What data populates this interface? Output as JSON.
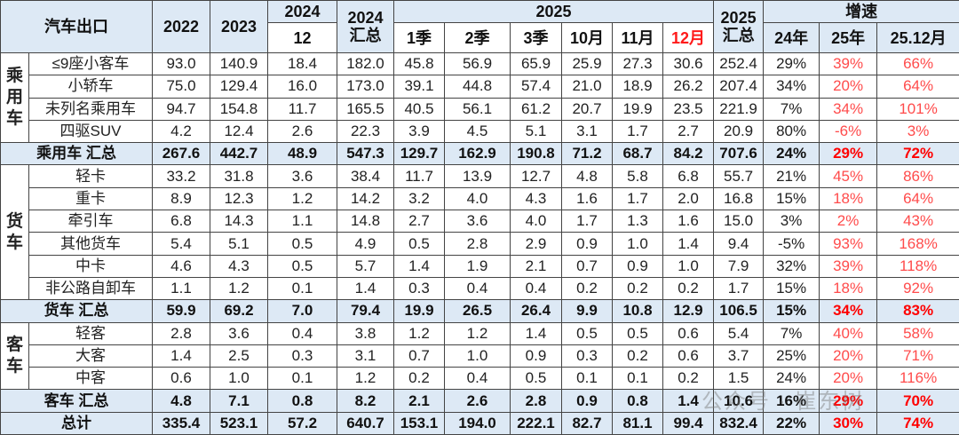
{
  "header": {
    "corner": "汽车出口",
    "y2022": "2022",
    "y2023": "2023",
    "y2024": "2024",
    "y2024_month": "12",
    "y2024_total_year": "2024",
    "y2024_total_label": "汇总",
    "y2025": "2025",
    "months2025": [
      "1季",
      "2季",
      "3季",
      "10月",
      "11月",
      "12月"
    ],
    "y2025_total_year": "2025",
    "y2025_total_label": "汇总",
    "growth": "增速",
    "growth_cols": [
      "24年",
      "25年",
      "25.12月"
    ]
  },
  "colors": {
    "header_bg": "#dde9f5",
    "highlight_red": "#ff0000",
    "growth_red": "#ff4b4b"
  },
  "groups": [
    {
      "name": "乘用车",
      "rows": [
        {
          "label": "≤9座小客车",
          "values": [
            "93.0",
            "140.9",
            "18.4",
            "182.0",
            "45.8",
            "56.9",
            "65.9",
            "25.9",
            "27.3",
            "30.6",
            "252.4"
          ],
          "growth": [
            "29%",
            "39%",
            "66%"
          ]
        },
        {
          "label": "小轿车",
          "values": [
            "75.0",
            "129.4",
            "16.0",
            "173.0",
            "39.1",
            "44.8",
            "57.4",
            "21.0",
            "18.9",
            "26.2",
            "207.4"
          ],
          "growth": [
            "34%",
            "20%",
            "64%"
          ]
        },
        {
          "label": "未列名乘用车",
          "values": [
            "94.7",
            "154.8",
            "11.7",
            "165.5",
            "40.5",
            "56.1",
            "61.2",
            "20.7",
            "19.9",
            "23.5",
            "221.9"
          ],
          "growth": [
            "7%",
            "34%",
            "101%"
          ]
        },
        {
          "label": "四驱SUV",
          "values": [
            "4.2",
            "12.4",
            "2.6",
            "22.3",
            "3.9",
            "4.5",
            "5.1",
            "3.1",
            "1.7",
            "2.7",
            "20.9"
          ],
          "growth": [
            "80%",
            "-6%",
            "3%"
          ]
        }
      ],
      "total": {
        "label": "乘用车 汇总",
        "values": [
          "267.6",
          "442.7",
          "48.9",
          "547.3",
          "129.7",
          "162.9",
          "190.8",
          "71.2",
          "68.7",
          "84.2",
          "707.6"
        ],
        "growth": [
          "24%",
          "29%",
          "72%"
        ]
      }
    },
    {
      "name": "货车",
      "rows": [
        {
          "label": "轻卡",
          "values": [
            "33.2",
            "31.8",
            "3.6",
            "38.4",
            "11.7",
            "13.9",
            "12.7",
            "4.8",
            "5.8",
            "6.8",
            "55.7"
          ],
          "growth": [
            "21%",
            "45%",
            "86%"
          ]
        },
        {
          "label": "重卡",
          "values": [
            "8.9",
            "12.3",
            "1.2",
            "14.2",
            "3.2",
            "4.0",
            "4.3",
            "1.6",
            "1.7",
            "2.0",
            "16.8"
          ],
          "growth": [
            "15%",
            "18%",
            "64%"
          ]
        },
        {
          "label": "牵引车",
          "values": [
            "6.8",
            "14.3",
            "1.1",
            "14.8",
            "2.7",
            "3.6",
            "4.0",
            "1.7",
            "1.3",
            "1.6",
            "15.0"
          ],
          "growth": [
            "3%",
            "2%",
            "43%"
          ]
        },
        {
          "label": "其他货车",
          "values": [
            "5.4",
            "5.1",
            "0.5",
            "4.9",
            "0.5",
            "2.8",
            "2.9",
            "0.9",
            "1.0",
            "1.4",
            "9.4"
          ],
          "growth": [
            "-5%",
            "93%",
            "168%"
          ]
        },
        {
          "label": "中卡",
          "values": [
            "4.6",
            "4.3",
            "0.5",
            "5.7",
            "1.4",
            "1.9",
            "2.1",
            "0.7",
            "0.9",
            "1.0",
            "7.9"
          ],
          "growth": [
            "32%",
            "39%",
            "118%"
          ]
        },
        {
          "label": "非公路自卸车",
          "values": [
            "1.1",
            "1.2",
            "0.1",
            "1.4",
            "0.3",
            "0.4",
            "0.4",
            "0.2",
            "0.2",
            "0.2",
            "1.7"
          ],
          "growth": [
            "15%",
            "18%",
            "92%"
          ]
        }
      ],
      "total": {
        "label": "货车 汇总",
        "values": [
          "59.9",
          "69.2",
          "7.0",
          "79.4",
          "19.9",
          "26.5",
          "26.4",
          "9.9",
          "10.8",
          "12.9",
          "106.5"
        ],
        "growth": [
          "15%",
          "34%",
          "83%"
        ]
      }
    },
    {
      "name": "客车",
      "rows": [
        {
          "label": "轻客",
          "values": [
            "2.8",
            "3.6",
            "0.4",
            "3.8",
            "1.2",
            "1.2",
            "1.4",
            "0.5",
            "0.5",
            "0.6",
            "5.4"
          ],
          "growth": [
            "7%",
            "40%",
            "58%"
          ]
        },
        {
          "label": "大客",
          "values": [
            "1.4",
            "2.5",
            "0.3",
            "3.1",
            "0.7",
            "1.0",
            "0.9",
            "0.3",
            "0.2",
            "0.6",
            "3.7"
          ],
          "growth": [
            "25%",
            "20%",
            "71%"
          ]
        },
        {
          "label": "中客",
          "values": [
            "0.6",
            "1.0",
            "0.1",
            "1.2",
            "0.2",
            "0.4",
            "0.5",
            "0.1",
            "0.1",
            "0.2",
            "1.5"
          ],
          "growth": [
            "24%",
            "20%",
            "116%"
          ]
        }
      ],
      "total": {
        "label": "客车 汇总",
        "values": [
          "4.8",
          "7.1",
          "0.8",
          "8.2",
          "2.1",
          "2.6",
          "2.8",
          "0.9",
          "0.8",
          "1.4",
          "10.6"
        ],
        "growth": [
          "16%",
          "29%",
          "70%"
        ]
      }
    }
  ],
  "grand_total": {
    "label": "总计",
    "values": [
      "335.4",
      "523.1",
      "57.2",
      "640.7",
      "153.1",
      "194.0",
      "222.1",
      "82.7",
      "81.1",
      "99.4",
      "832.4"
    ],
    "growth": [
      "22%",
      "30%",
      "74%"
    ]
  },
  "watermark": "公众号 · 崔东树"
}
